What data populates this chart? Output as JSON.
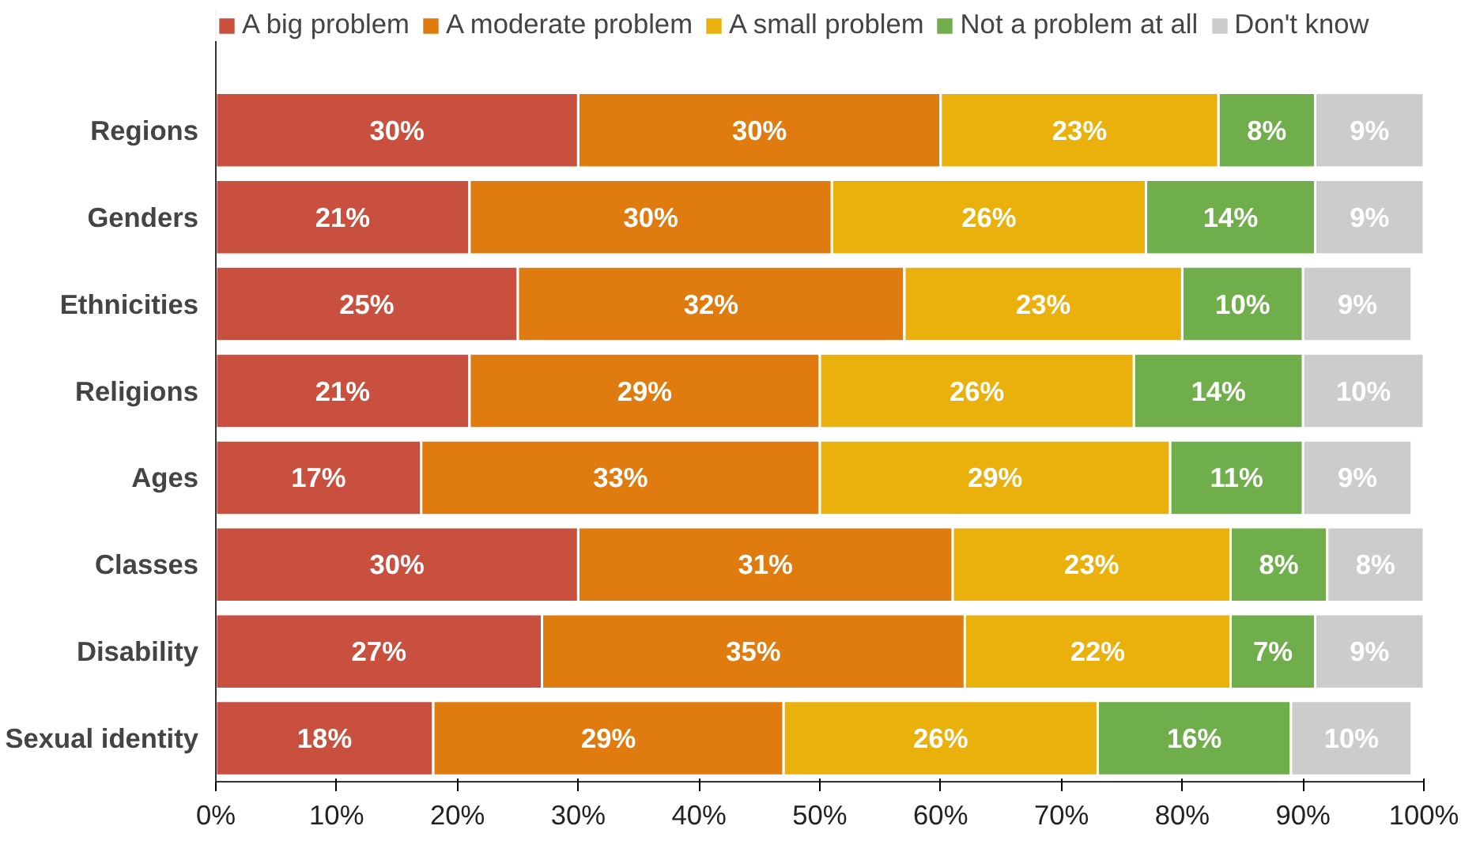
{
  "chart_data": {
    "type": "bar",
    "orientation": "horizontal",
    "stacked": true,
    "legend": "top left",
    "grid": false,
    "categories": [
      "Regions",
      "Genders",
      "Ethnicities",
      "Religions",
      "Ages",
      "Classes",
      "Disability",
      "Sexual identity"
    ],
    "xlim": [
      0,
      100
    ],
    "xticks": [
      {
        "value": 0,
        "label": "0%"
      },
      {
        "value": 10,
        "label": "10%"
      },
      {
        "value": 20,
        "label": "20%"
      },
      {
        "value": 30,
        "label": "30%"
      },
      {
        "value": 40,
        "label": "40%"
      },
      {
        "value": 50,
        "label": "50%"
      },
      {
        "value": 60,
        "label": "60%"
      },
      {
        "value": 70,
        "label": "70%"
      },
      {
        "value": 80,
        "label": "80%"
      },
      {
        "value": 90,
        "label": "90%"
      },
      {
        "value": 100,
        "label": "100%"
      }
    ],
    "series": [
      {
        "name": "A big problem",
        "color": "#c9503f",
        "values": [
          30,
          21,
          25,
          21,
          17,
          30,
          27,
          18
        ],
        "value_labels": [
          "30%",
          "21%",
          "25%",
          "21%",
          "17%",
          "30%",
          "27%",
          "18%"
        ]
      },
      {
        "name": "A moderate problem",
        "color": "#e07b10",
        "values": [
          30,
          30,
          32,
          29,
          33,
          31,
          35,
          29
        ],
        "value_labels": [
          "30%",
          "30%",
          "32%",
          "29%",
          "33%",
          "31%",
          "35%",
          "29%"
        ]
      },
      {
        "name": "A small problem",
        "color": "#eab00c",
        "values": [
          23,
          26,
          23,
          26,
          29,
          23,
          22,
          26
        ],
        "value_labels": [
          "23%",
          "26%",
          "23%",
          "26%",
          "29%",
          "23%",
          "22%",
          "26%"
        ]
      },
      {
        "name": "Not a problem at all",
        "color": "#6fae4b",
        "values": [
          8,
          14,
          10,
          14,
          11,
          8,
          7,
          16
        ],
        "value_labels": [
          "8%",
          "14%",
          "10%",
          "14%",
          "11%",
          "8%",
          "7%",
          "16%"
        ]
      },
      {
        "name": "Don't know",
        "color": "#cccccc",
        "values": [
          9,
          9,
          9,
          10,
          9,
          8,
          9,
          10
        ],
        "value_labels": [
          "9%",
          "9%",
          "9%",
          "10%",
          "9%",
          "8%",
          "9%",
          "10%"
        ]
      }
    ]
  }
}
